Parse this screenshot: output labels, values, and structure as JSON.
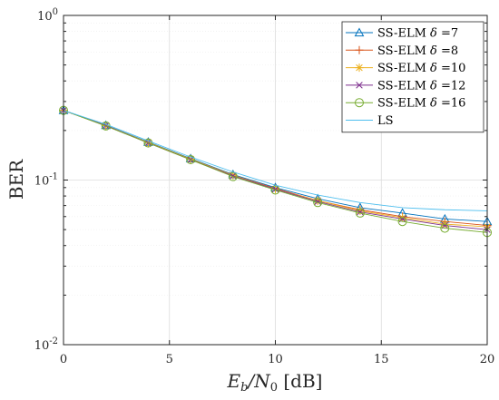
{
  "chart_data": {
    "type": "line",
    "title": "",
    "xlabel": "E_b/N_0 [dB]",
    "xlabel_parts": {
      "e": "E",
      "b": "b",
      "slash": "/N",
      "zero": "0",
      "unit": " [dB]"
    },
    "ylabel": "BER",
    "yscale": "log",
    "xlim": [
      0,
      20
    ],
    "ylim": [
      0.01,
      1
    ],
    "grid": true,
    "legend_position": "top-right",
    "x_ticks": [
      "0",
      "5",
      "10",
      "15",
      "20"
    ],
    "y_ticks": [
      {
        "value": 0.01,
        "base": "10",
        "exp": "-2"
      },
      {
        "value": 0.1,
        "base": "10",
        "exp": "-1"
      },
      {
        "value": 1,
        "base": "10",
        "exp": "0"
      }
    ],
    "x": [
      0,
      2,
      4,
      6,
      8,
      10,
      12,
      14,
      16,
      18,
      20
    ],
    "series": [
      {
        "name": "SS-ELM δ =7",
        "label_prefix": "SS-ELM ",
        "delta": "δ",
        "label_suffix": " =7",
        "color": "#0072BD",
        "marker": "triangle",
        "values": [
          0.265,
          0.215,
          0.17,
          0.135,
          0.108,
          0.09,
          0.077,
          0.068,
          0.063,
          0.058,
          0.056
        ]
      },
      {
        "name": "SS-ELM δ =8",
        "label_prefix": "SS-ELM ",
        "delta": "δ",
        "label_suffix": " =8",
        "color": "#D95319",
        "marker": "plus",
        "values": [
          0.265,
          0.214,
          0.169,
          0.134,
          0.107,
          0.089,
          0.075,
          0.066,
          0.06,
          0.056,
          0.053
        ]
      },
      {
        "name": "SS-ELM δ =10",
        "label_prefix": "SS-ELM ",
        "delta": "δ",
        "label_suffix": " =10",
        "color": "#EDB120",
        "marker": "asterisk",
        "values": [
          0.265,
          0.214,
          0.169,
          0.134,
          0.107,
          0.088,
          0.075,
          0.065,
          0.059,
          0.054,
          0.052
        ]
      },
      {
        "name": "SS-ELM δ =12",
        "label_prefix": "SS-ELM ",
        "delta": "δ",
        "label_suffix": " =12",
        "color": "#7E2F8E",
        "marker": "cross",
        "values": [
          0.265,
          0.214,
          0.168,
          0.133,
          0.106,
          0.088,
          0.074,
          0.064,
          0.058,
          0.053,
          0.05
        ]
      },
      {
        "name": "SS-ELM δ =16",
        "label_prefix": "SS-ELM ",
        "delta": "δ",
        "label_suffix": " =16",
        "color": "#77AC30",
        "marker": "circle",
        "values": [
          0.265,
          0.213,
          0.168,
          0.133,
          0.105,
          0.087,
          0.073,
          0.063,
          0.056,
          0.051,
          0.048
        ]
      },
      {
        "name": "LS",
        "label_prefix": "LS",
        "delta": "",
        "label_suffix": "",
        "color": "#4DBEEE",
        "marker": "none",
        "values": [
          0.265,
          0.218,
          0.173,
          0.138,
          0.112,
          0.093,
          0.081,
          0.073,
          0.068,
          0.066,
          0.065
        ]
      }
    ]
  }
}
